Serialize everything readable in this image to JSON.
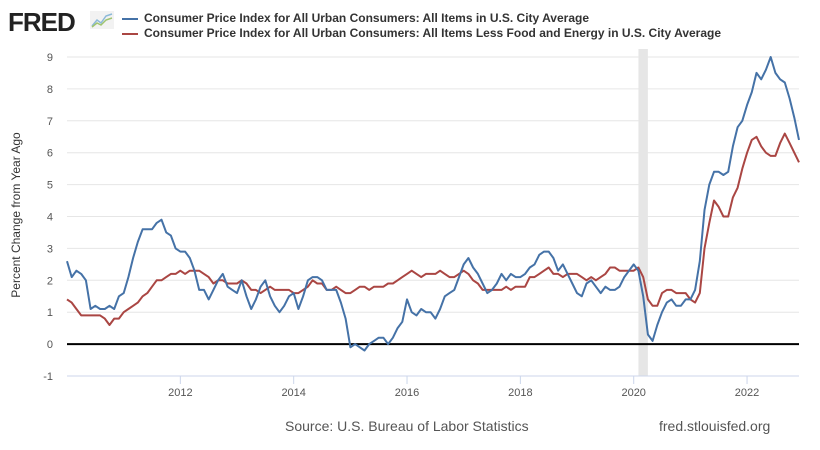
{
  "header": {
    "logo": "FRED",
    "logo_icon": "chart-sparkline-icon"
  },
  "footer": {
    "source": "Source: U.S. Bureau of Labor Statistics",
    "site": "fred.stlouisfed.org"
  },
  "colors": {
    "series1": "#4572a7",
    "series2": "#aa4643",
    "recession": "#e6e6e6",
    "grid": "#e6e6e6",
    "zero": "#000000"
  },
  "chart_data": {
    "type": "line",
    "title": "",
    "xlabel": "",
    "ylabel": "Percent Change from Year Ago",
    "ylim": [
      -1,
      9
    ],
    "xlim": [
      "2010-01",
      "2022-12"
    ],
    "yticks": [
      "-1",
      "0",
      "1",
      "2",
      "3",
      "4",
      "5",
      "6",
      "7",
      "8",
      "9"
    ],
    "xticks": [
      "2012",
      "2014",
      "2016",
      "2018",
      "2020",
      "2022"
    ],
    "grid": true,
    "legend": "top",
    "recessions": [
      {
        "start": "2020-02",
        "end": "2020-04"
      }
    ],
    "x_start": "2010-01",
    "frequency": "monthly",
    "series": [
      {
        "name": "Consumer Price Index for All Urban Consumers: All Items in U.S. City Average",
        "values": [
          2.6,
          2.1,
          2.3,
          2.2,
          2.0,
          1.1,
          1.2,
          1.1,
          1.1,
          1.2,
          1.1,
          1.5,
          1.6,
          2.1,
          2.7,
          3.2,
          3.6,
          3.6,
          3.6,
          3.8,
          3.9,
          3.5,
          3.4,
          3.0,
          2.9,
          2.9,
          2.7,
          2.3,
          1.7,
          1.7,
          1.4,
          1.7,
          2.0,
          2.2,
          1.8,
          1.7,
          1.6,
          2.0,
          1.5,
          1.1,
          1.4,
          1.8,
          2.0,
          1.5,
          1.2,
          1.0,
          1.2,
          1.5,
          1.6,
          1.1,
          1.5,
          2.0,
          2.1,
          2.1,
          2.0,
          1.7,
          1.7,
          1.7,
          1.3,
          0.8,
          -0.1,
          0.0,
          -0.1,
          -0.2,
          0.0,
          0.1,
          0.2,
          0.2,
          0.0,
          0.2,
          0.5,
          0.7,
          1.4,
          1.0,
          0.9,
          1.1,
          1.0,
          1.0,
          0.8,
          1.1,
          1.5,
          1.6,
          1.7,
          2.1,
          2.5,
          2.7,
          2.4,
          2.2,
          1.9,
          1.6,
          1.7,
          1.9,
          2.2,
          2.0,
          2.2,
          2.1,
          2.1,
          2.2,
          2.4,
          2.5,
          2.8,
          2.9,
          2.9,
          2.7,
          2.3,
          2.5,
          2.2,
          1.9,
          1.6,
          1.5,
          1.9,
          2.0,
          1.8,
          1.6,
          1.8,
          1.7,
          1.7,
          1.8,
          2.1,
          2.3,
          2.5,
          2.3,
          1.5,
          0.3,
          0.1,
          0.6,
          1.0,
          1.3,
          1.4,
          1.2,
          1.2,
          1.4,
          1.4,
          1.7,
          2.6,
          4.2,
          5.0,
          5.4,
          5.4,
          5.3,
          5.4,
          6.2,
          6.8,
          7.0,
          7.5,
          7.9,
          8.5,
          8.3,
          8.6,
          9.0,
          8.5,
          8.3,
          8.2,
          7.7,
          7.1,
          6.4
        ]
      },
      {
        "name": "Consumer Price Index for All Urban Consumers: All Items Less Food and Energy in U.S. City Average",
        "values": [
          1.4,
          1.3,
          1.1,
          0.9,
          0.9,
          0.9,
          0.9,
          0.9,
          0.8,
          0.6,
          0.8,
          0.8,
          1.0,
          1.1,
          1.2,
          1.3,
          1.5,
          1.6,
          1.8,
          2.0,
          2.0,
          2.1,
          2.2,
          2.2,
          2.3,
          2.2,
          2.3,
          2.3,
          2.3,
          2.2,
          2.1,
          1.9,
          2.0,
          2.0,
          1.9,
          1.9,
          1.9,
          2.0,
          1.9,
          1.7,
          1.7,
          1.6,
          1.7,
          1.8,
          1.7,
          1.7,
          1.7,
          1.7,
          1.6,
          1.6,
          1.7,
          1.8,
          2.0,
          1.9,
          1.9,
          1.7,
          1.7,
          1.8,
          1.7,
          1.6,
          1.6,
          1.7,
          1.8,
          1.8,
          1.7,
          1.8,
          1.8,
          1.8,
          1.9,
          1.9,
          2.0,
          2.1,
          2.2,
          2.3,
          2.2,
          2.1,
          2.2,
          2.2,
          2.2,
          2.3,
          2.2,
          2.1,
          2.1,
          2.2,
          2.3,
          2.2,
          2.0,
          1.9,
          1.7,
          1.7,
          1.7,
          1.7,
          1.7,
          1.8,
          1.7,
          1.8,
          1.8,
          1.8,
          2.1,
          2.1,
          2.2,
          2.3,
          2.4,
          2.2,
          2.2,
          2.1,
          2.2,
          2.2,
          2.2,
          2.1,
          2.0,
          2.1,
          2.0,
          2.1,
          2.2,
          2.4,
          2.4,
          2.3,
          2.3,
          2.3,
          2.3,
          2.4,
          2.1,
          1.4,
          1.2,
          1.2,
          1.6,
          1.7,
          1.7,
          1.6,
          1.6,
          1.6,
          1.4,
          1.3,
          1.6,
          3.0,
          3.8,
          4.5,
          4.3,
          4.0,
          4.0,
          4.6,
          4.9,
          5.5,
          6.0,
          6.4,
          6.5,
          6.2,
          6.0,
          5.9,
          5.9,
          6.3,
          6.6,
          6.3,
          6.0,
          5.7
        ]
      }
    ]
  }
}
